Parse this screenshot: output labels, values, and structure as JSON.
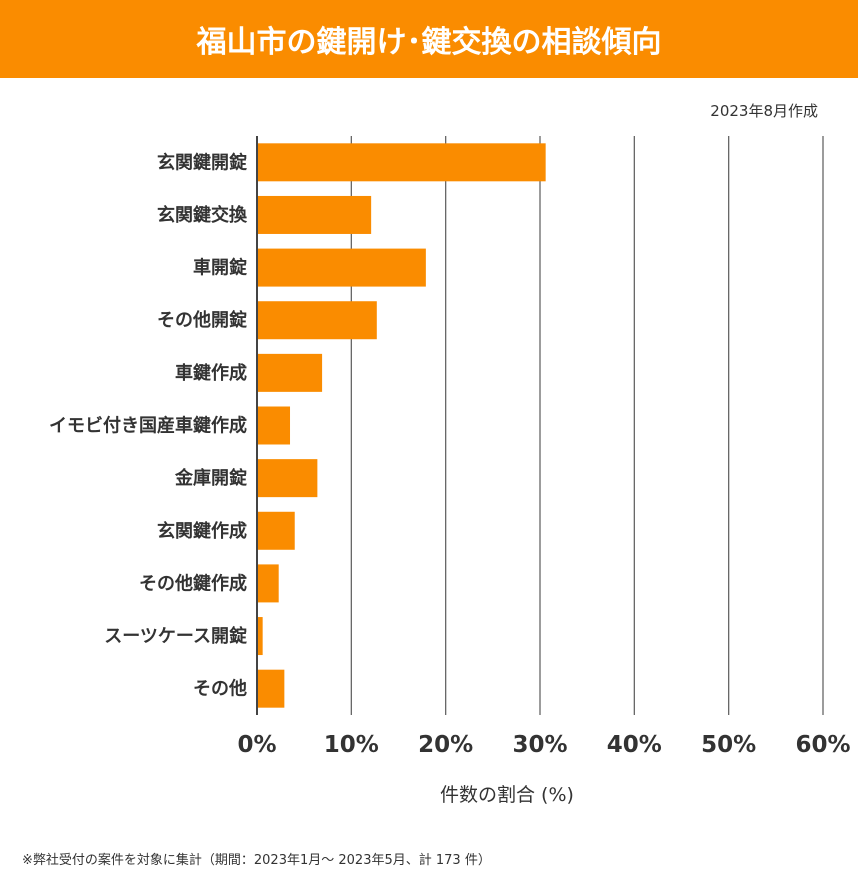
{
  "header": {
    "title": "福山市の鍵開け･鍵交換の相談傾向"
  },
  "created_date": "2023年8月作成",
  "footnote": "※弊社受付の案件を対象に集計（期間：2023年1月～ 2023年5月、計 173 件）",
  "chart_data": {
    "type": "bar",
    "orientation": "horizontal",
    "title": "福山市の鍵開け･鍵交換の相談傾向",
    "xlabel": "件数の割合 (%)",
    "ylabel": "",
    "categories": [
      "玄関鍵開錠",
      "玄関鍵交換",
      "車開錠",
      "その他開錠",
      "車鍵作成",
      "イモビ付き国産車鍵作成",
      "金庫開錠",
      "玄関鍵作成",
      "その他鍵作成",
      "スーツケース開錠",
      "その他"
    ],
    "values": [
      30.6,
      12.1,
      17.9,
      12.7,
      6.9,
      3.5,
      6.4,
      4.0,
      2.3,
      0.6,
      2.9
    ],
    "xlim": [
      0,
      60
    ],
    "xticks": [
      "0%",
      "10%",
      "20%",
      "30%",
      "40%",
      "50%",
      "60%"
    ],
    "grid": true,
    "bar_color": "#FA8C00",
    "grid_color": "#666666"
  }
}
